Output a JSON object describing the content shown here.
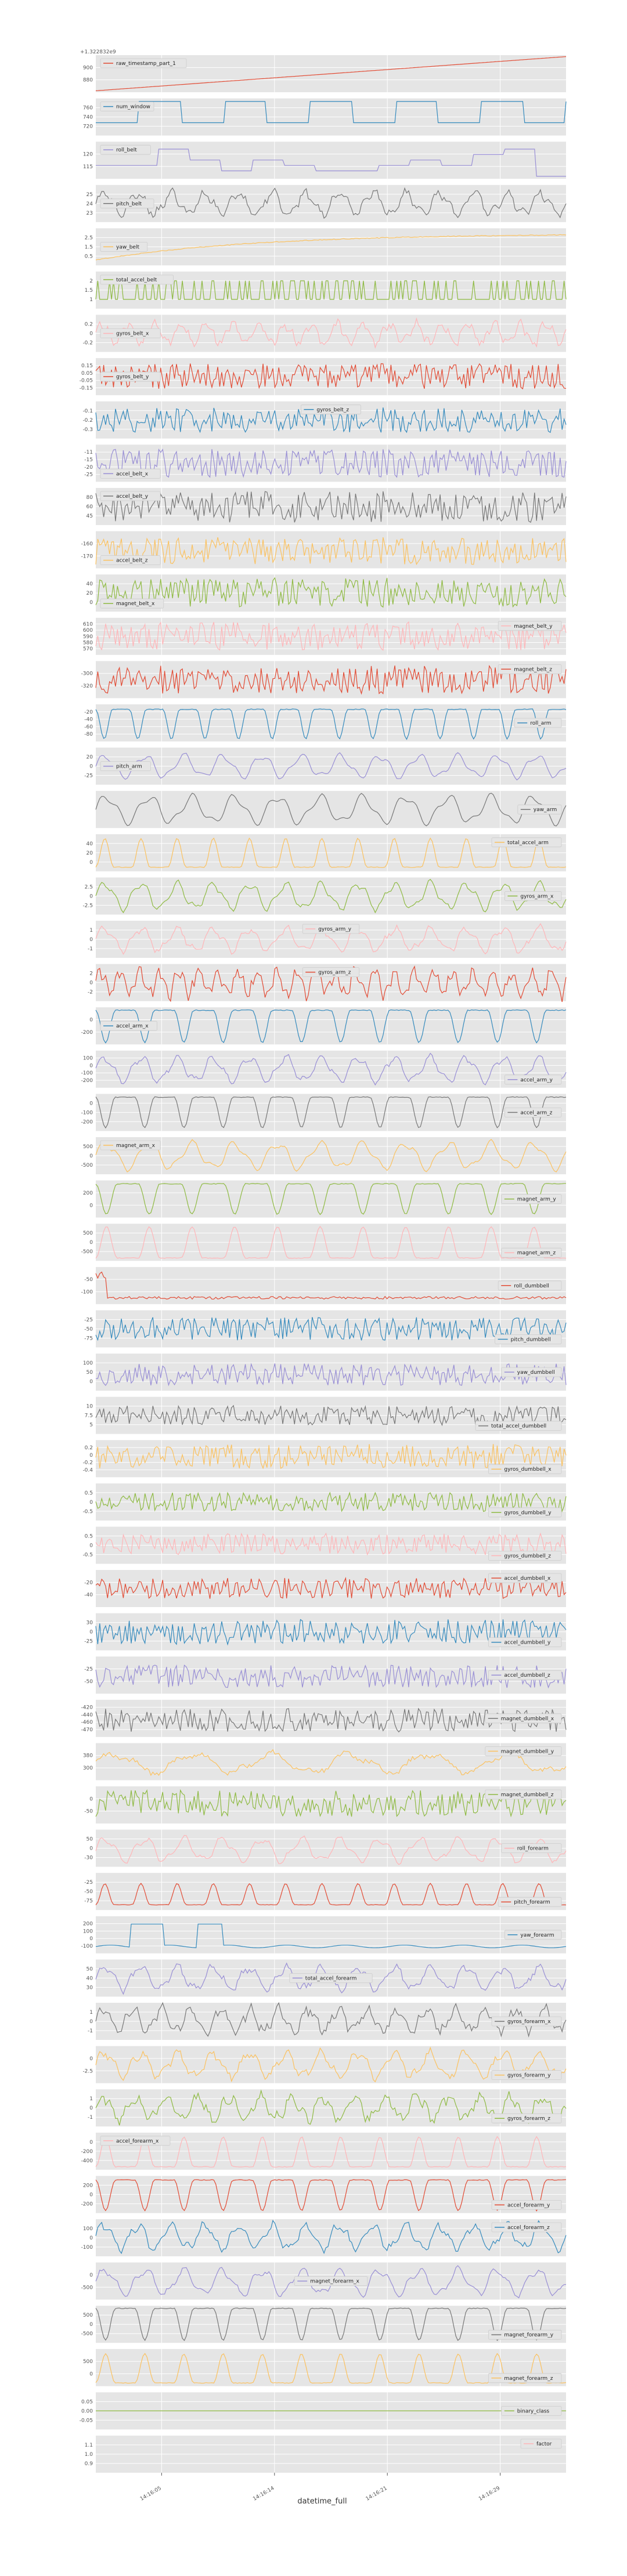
{
  "chart_data": {
    "type": "line",
    "xlabel": "datetime_full",
    "x_ticks": [
      "14:16:05",
      "14:16:14",
      "14:16:21",
      "14:16:29"
    ],
    "offset_label": "+1.322832e9",
    "colors": [
      "#E24A33",
      "#348ABD",
      "#988ED5",
      "#777777",
      "#FBC15E",
      "#8EBA42",
      "#FFB5B8"
    ],
    "series": [
      {
        "name": "raw_timestamp_part_1",
        "ylim": [
          870,
          920
        ],
        "yticks": [
          "900",
          "880"
        ],
        "legend": "top-left",
        "kind": "linear",
        "start": 872,
        "end": 918
      },
      {
        "name": "num_window",
        "ylim": [
          710,
          770
        ],
        "yticks": [
          "760",
          "740",
          "720"
        ],
        "legend": "top-left",
        "kind": "step",
        "min": 716,
        "max": 765,
        "changes": 10
      },
      {
        "name": "roll_belt",
        "ylim": [
          112,
          127
        ],
        "yticks": [
          "120",
          "115"
        ],
        "legend": "top-left",
        "kind": "steps",
        "min": 113,
        "max": 124,
        "levels": 6
      },
      {
        "name": "pitch_belt",
        "ylim": [
          21,
          28
        ],
        "yticks": [
          "25",
          "24",
          "23"
        ],
        "legend": "mid-left",
        "kind": "wave",
        "min": 22,
        "max": 27,
        "cycles": 14,
        "noise": 0.25
      },
      {
        "name": "yaw_belt",
        "ylim": [
          0,
          3.5
        ],
        "yticks": [
          "2.5",
          "1.5",
          "0.5"
        ],
        "legend": "mid-left",
        "kind": "rise",
        "min": 0.5,
        "max": 3.0
      },
      {
        "name": "total_accel_belt",
        "ylim": [
          0.5,
          2.5
        ],
        "yticks": [
          "2",
          "1.5",
          "1"
        ],
        "legend": "top-left",
        "kind": "binary",
        "min": 1,
        "max": 2
      },
      {
        "name": "gyros_belt_x",
        "ylim": [
          -0.3,
          0.3
        ],
        "yticks": [
          "0.2",
          "0",
          "-0.2"
        ],
        "legend": "mid-left",
        "kind": "wave",
        "min": -0.2,
        "max": 0.2,
        "cycles": 18,
        "noise": 0.3
      },
      {
        "name": "gyros_belt_y",
        "ylim": [
          -0.2,
          0.2
        ],
        "yticks": [
          "0.15",
          "0.05",
          "-0.05",
          "-0.15"
        ],
        "legend": "mid-left",
        "kind": "noise",
        "min": -0.15,
        "max": 0.15
      },
      {
        "name": "gyros_belt_z",
        "ylim": [
          -0.35,
          0
        ],
        "yticks": [
          "-0.1",
          "-0.2",
          "-0.3"
        ],
        "legend": "top-center",
        "kind": "noise",
        "min": -0.3,
        "max": -0.05
      },
      {
        "name": "accel_belt_x",
        "ylim": [
          -28,
          -8
        ],
        "yticks": [
          "-11",
          "-15",
          "-20",
          "-25"
        ],
        "legend": "bottom-left",
        "kind": "noise",
        "min": -26,
        "max": -10
      },
      {
        "name": "accel_belt_y",
        "ylim": [
          40,
          85
        ],
        "yticks": [
          "80",
          "60",
          "45"
        ],
        "legend": "top-left",
        "kind": "noise",
        "min": 42,
        "max": 82
      },
      {
        "name": "accel_belt_z",
        "ylim": [
          -175,
          -140
        ],
        "yticks": [
          "-160",
          "-170"
        ],
        "legend": "bottom-left",
        "kind": "noise",
        "min": -172,
        "max": -145
      },
      {
        "name": "magnet_belt_x",
        "ylim": [
          -5,
          45
        ],
        "yticks": [
          "40",
          "20",
          "0"
        ],
        "legend": "bottom-left",
        "kind": "noise",
        "min": 0,
        "max": 42
      },
      {
        "name": "magnet_belt_y",
        "ylim": [
          565,
          612
        ],
        "yticks": [
          "610",
          "600",
          "590",
          "580",
          "570"
        ],
        "legend": "top-right",
        "kind": "noise",
        "min": 570,
        "max": 608
      },
      {
        "name": "magnet_belt_z",
        "ylim": [
          -340,
          -290
        ],
        "yticks": [
          "-300",
          "-320"
        ],
        "legend": "top-right",
        "kind": "noise",
        "min": -335,
        "max": -295
      },
      {
        "name": "roll_arm",
        "ylim": [
          -90,
          -15
        ],
        "yticks": [
          "-20",
          "-40",
          "-60",
          "-80"
        ],
        "legend": "mid-right",
        "kind": "dips",
        "min": -85,
        "max": -25,
        "cycles": 14
      },
      {
        "name": "pitch_arm",
        "ylim": [
          -40,
          30
        ],
        "yticks": [
          "20",
          "0",
          "-25"
        ],
        "legend": "mid-left",
        "kind": "wave",
        "min": -30,
        "max": 20,
        "cycles": 12,
        "noise": 0.05
      },
      {
        "name": "yaw_arm",
        "ylim": [
          -150,
          20
        ],
        "yticks": [],
        "legend": "mid-right",
        "kind": "wave",
        "min": -140,
        "max": 10,
        "cycles": 11,
        "noise": 0.02
      },
      {
        "name": "total_accel_arm",
        "ylim": [
          0,
          45
        ],
        "yticks": [
          "40",
          "20",
          "0"
        ],
        "legend": "top-right",
        "kind": "bumps",
        "min": 5,
        "max": 40,
        "cycles": 13
      },
      {
        "name": "gyros_arm_x",
        "ylim": [
          -2.5,
          3.5
        ],
        "yticks": [
          "2.5",
          "0",
          "-2.5"
        ],
        "legend": "mid-right",
        "kind": "wave",
        "min": -2,
        "max": 3,
        "cycles": 13,
        "noise": 0.1
      },
      {
        "name": "gyros_arm_y",
        "ylim": [
          -1.6,
          1.6
        ],
        "yticks": [
          "1",
          "0",
          "-1"
        ],
        "legend": "top-center",
        "kind": "wave",
        "min": -1.2,
        "max": 1.2,
        "cycles": 13,
        "noise": 0.15
      },
      {
        "name": "gyros_arm_z",
        "ylim": [
          -2.5,
          2.5
        ],
        "yticks": [
          "2",
          "0",
          "-2"
        ],
        "legend": "top-center",
        "kind": "wave",
        "min": -2,
        "max": 2,
        "cycles": 24,
        "noise": 0.35
      },
      {
        "name": "accel_arm_x",
        "ylim": [
          -320,
          60
        ],
        "yticks": [
          "0",
          "-200"
        ],
        "legend": "mid-left",
        "kind": "dips",
        "min": -300,
        "max": 30,
        "cycles": 12
      },
      {
        "name": "accel_arm_y",
        "ylim": [
          -260,
          160
        ],
        "yticks": [
          "100",
          "0",
          "-100",
          "-200"
        ],
        "legend": "bottom-right",
        "kind": "wave",
        "min": -220,
        "max": 120,
        "cycles": 13,
        "noise": 0.1
      },
      {
        "name": "accel_arm_z",
        "ylim": [
          -280,
          60
        ],
        "yticks": [
          "0",
          "-100",
          "-200"
        ],
        "legend": "mid-right",
        "kind": "dips",
        "min": -250,
        "max": 30,
        "cycles": 12
      },
      {
        "name": "magnet_arm_x",
        "ylim": [
          -600,
          700
        ],
        "yticks": [
          "500",
          "0",
          "-500"
        ],
        "legend": "top-left",
        "kind": "wave",
        "min": -500,
        "max": 600,
        "cycles": 11,
        "noise": 0.05
      },
      {
        "name": "magnet_arm_y",
        "ylim": [
          -150,
          400
        ],
        "yticks": [
          "200",
          "0"
        ],
        "legend": "mid-right",
        "kind": "dips",
        "min": -100,
        "max": 350,
        "cycles": 11
      },
      {
        "name": "magnet_arm_z",
        "ylim": [
          -600,
          700
        ],
        "yticks": [
          "500",
          "0",
          "-500"
        ],
        "legend": "bottom-right",
        "kind": "bumps",
        "min": -500,
        "max": 600,
        "cycles": 11
      },
      {
        "name": "roll_dumbbell",
        "ylim": [
          -130,
          20
        ],
        "yticks": [
          "-50",
          "-100"
        ],
        "legend": "mid-right",
        "kind": "flatspike",
        "min": -110,
        "max": 0
      },
      {
        "name": "pitch_dumbbell",
        "ylim": [
          -80,
          -20
        ],
        "yticks": [
          "-25",
          "-50",
          "-75"
        ],
        "legend": "bottom-right",
        "kind": "noise",
        "min": -70,
        "max": -30
      },
      {
        "name": "yaw_dumbbell",
        "ylim": [
          -30,
          130
        ],
        "yticks": [
          "100",
          "50",
          "0"
        ],
        "legend": "mid-right",
        "kind": "noise",
        "min": -10,
        "max": 90
      },
      {
        "name": "total_accel_dumbbell",
        "ylim": [
          3,
          12
        ],
        "yticks": [
          "10",
          "7.5",
          "5"
        ],
        "legend": "bottom-right",
        "kind": "noise",
        "min": 5,
        "max": 10
      },
      {
        "name": "gyros_dumbbell_x",
        "ylim": [
          -0.75,
          0.4
        ],
        "yticks": [
          "0.2",
          "0",
          "-0.2",
          "-0.4"
        ],
        "legend": "bottom-right",
        "kind": "noise",
        "min": -0.5,
        "max": 0.3
      },
      {
        "name": "gyros_dumbbell_y",
        "ylim": [
          -0.6,
          0.7
        ],
        "yticks": [
          "0.5",
          "0",
          "-0.5"
        ],
        "legend": "bottom-right",
        "kind": "noise",
        "min": -0.3,
        "max": 0.4
      },
      {
        "name": "gyros_dumbbell_z",
        "ylim": [
          -1.2,
          0.6
        ],
        "yticks": [
          "0.5",
          "0",
          "-0.5"
        ],
        "legend": "bottom-right",
        "kind": "noise",
        "min": -0.8,
        "max": 0.3
      },
      {
        "name": "accel_dumbbell_x",
        "ylim": [
          -55,
          -5
        ],
        "yticks": [
          "-20",
          "-40"
        ],
        "legend": "top-right",
        "kind": "noise",
        "min": -45,
        "max": -15
      },
      {
        "name": "accel_dumbbell_y",
        "ylim": [
          -30,
          40
        ],
        "yticks": [
          "30",
          "0",
          "-25"
        ],
        "legend": "bottom-right",
        "kind": "noise",
        "min": -20,
        "max": 30
      },
      {
        "name": "accel_dumbbell_z",
        "ylim": [
          -75,
          -5
        ],
        "yticks": [
          "-25",
          "-50"
        ],
        "legend": "mid-right",
        "kind": "noise",
        "min": -65,
        "max": -20
      },
      {
        "name": "magnet_dumbbell_x",
        "ylim": [
          -480,
          -410
        ],
        "yticks": [
          "-420",
          "-440",
          "-460",
          "-470"
        ],
        "legend": "mid-right",
        "kind": "noise",
        "min": -472,
        "max": -425
      },
      {
        "name": "magnet_dumbbell_y",
        "ylim": [
          270,
          400
        ],
        "yticks": [
          "380",
          "300"
        ],
        "legend": "top-right",
        "kind": "wave",
        "min": 290,
        "max": 370,
        "cycles": 6,
        "noise": 0.2
      },
      {
        "name": "magnet_dumbbell_z",
        "ylim": [
          -80,
          40
        ],
        "yticks": [
          "0",
          "-50"
        ],
        "legend": "top-right",
        "kind": "noise",
        "min": -60,
        "max": 30
      },
      {
        "name": "roll_forearm",
        "ylim": [
          -40,
          80
        ],
        "yticks": [
          "50",
          "0",
          "-30"
        ],
        "legend": "mid-right",
        "kind": "wave",
        "min": -30,
        "max": 60,
        "cycles": 12,
        "noise": 0.1
      },
      {
        "name": "pitch_forearm",
        "ylim": [
          -80,
          -10
        ],
        "yticks": [
          "-25",
          "-50",
          "-75"
        ],
        "legend": "bottom-right",
        "kind": "bumps",
        "min": -70,
        "max": -30,
        "cycles": 13
      },
      {
        "name": "yaw_forearm",
        "ylim": [
          -150,
          230
        ],
        "yticks": [
          "200",
          "100",
          "0",
          "-100"
        ],
        "legend": "mid-right",
        "kind": "squares",
        "min": -120,
        "max": 150
      },
      {
        "name": "total_accel_forearm",
        "ylim": [
          20,
          60
        ],
        "yticks": [
          "50",
          "40",
          "30"
        ],
        "legend": "mid-center",
        "kind": "wave",
        "min": 25,
        "max": 55,
        "cycles": 13,
        "noise": 0.2
      },
      {
        "name": "gyros_forearm_x",
        "ylim": [
          -1.5,
          1.5
        ],
        "yticks": [
          "1",
          "0",
          "-1"
        ],
        "legend": "mid-right",
        "kind": "wave",
        "min": -1,
        "max": 1.2,
        "cycles": 16,
        "noise": 0.3
      },
      {
        "name": "gyros_forearm_y",
        "ylim": [
          -3,
          2
        ],
        "yticks": [
          "0",
          "-2.5"
        ],
        "legend": "bottom-right",
        "kind": "wave",
        "min": -2.5,
        "max": 1.5,
        "cycles": 13,
        "noise": 0.2
      },
      {
        "name": "gyros_forearm_z",
        "ylim": [
          -1.3,
          1.3
        ],
        "yticks": [
          "1",
          "0",
          "-1"
        ],
        "legend": "bottom-right",
        "kind": "wave",
        "min": -1,
        "max": 1,
        "cycles": 15,
        "noise": 0.3
      },
      {
        "name": "accel_forearm_x",
        "ylim": [
          -500,
          120
        ],
        "yticks": [
          "0",
          "-200",
          "-400"
        ],
        "legend": "top-left",
        "kind": "bumps",
        "min": -450,
        "max": 50,
        "cycles": 12
      },
      {
        "name": "accel_forearm_y",
        "ylim": [
          -400,
          330
        ],
        "yticks": [
          "200",
          "0",
          "-200"
        ],
        "legend": "bottom-right",
        "kind": "dips",
        "min": -350,
        "max": 250,
        "cycles": 12
      },
      {
        "name": "accel_forearm_z",
        "ylim": [
          -130,
          120
        ],
        "yticks": [
          "100",
          "0",
          "-100"
        ],
        "legend": "top-right",
        "kind": "wave",
        "min": -100,
        "max": 100,
        "cycles": 14,
        "noise": 0.2
      },
      {
        "name": "magnet_forearm_x",
        "ylim": [
          -650,
          250
        ],
        "yticks": [
          "0",
          "-500"
        ],
        "legend": "mid-center",
        "kind": "wave",
        "min": -600,
        "max": 150,
        "cycles": 12,
        "noise": 0.1
      },
      {
        "name": "magnet_forearm_y",
        "ylim": [
          -650,
          750
        ],
        "yticks": [
          "500",
          "0",
          "-500"
        ],
        "legend": "bottom-right",
        "kind": "dips",
        "min": -550,
        "max": 650,
        "cycles": 12
      },
      {
        "name": "magnet_forearm_z",
        "ylim": [
          -250,
          900
        ],
        "yticks": [
          "500",
          "0"
        ],
        "legend": "bottom-right",
        "kind": "bumps",
        "min": -150,
        "max": 750,
        "cycles": 12
      },
      {
        "name": "binary_class",
        "ylim": [
          -0.06,
          0.06
        ],
        "yticks": [
          "0.05",
          "0.00",
          "-0.05"
        ],
        "legend": "mid-right",
        "kind": "const",
        "value": 0
      },
      {
        "name": "factor",
        "ylim": [
          0.9,
          1.1
        ],
        "yticks": [
          "1.1",
          "1.0",
          "0.9"
        ],
        "legend": "top-right",
        "kind": "empty"
      }
    ]
  }
}
